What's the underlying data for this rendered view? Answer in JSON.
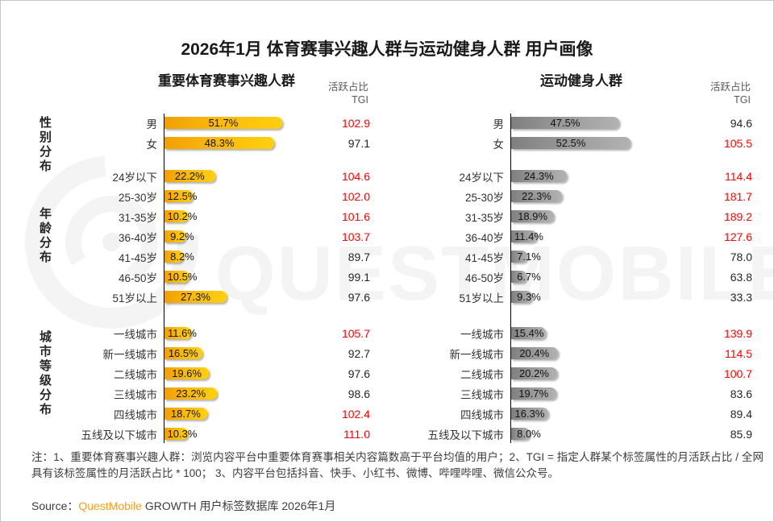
{
  "title": "2026年1月 体育赛事兴趣人群与运动健身人群 用户画像",
  "watermark": {
    "text": "QUESTMOBILE",
    "logo": "questmobile-rings-logo"
  },
  "groups": [
    {
      "label": "性别分布"
    },
    {
      "label": "年龄分布"
    },
    {
      "label": "城市等级分布"
    }
  ],
  "colors": {
    "tgi_high": "#ff0000",
    "tgi_normal": "#262626",
    "bar_gold_start": "#f0a005",
    "bar_gold_end": "#ffd00e",
    "bar_gray_start": "#7f7f7f",
    "bar_gray_end": "#b2b2b2",
    "brand_orange": "#f7a01b"
  },
  "charts": [
    {
      "subtitle": "重要体育赛事兴趣人群",
      "col_header": {
        "line1": "活跃占比",
        "line2": "TGI"
      },
      "style": "gold",
      "sections": [
        {
          "group": "性别分布",
          "rows": [
            {
              "label": "男",
              "pct": 51.7,
              "pct_label": "51.7%",
              "tgi": "102.9",
              "high": true
            },
            {
              "label": "女",
              "pct": 48.3,
              "pct_label": "48.3%",
              "tgi": "97.1",
              "high": false
            }
          ]
        },
        {
          "group": "年龄分布",
          "rows": [
            {
              "label": "24岁以下",
              "pct": 22.2,
              "pct_label": "22.2%",
              "tgi": "104.6",
              "high": true
            },
            {
              "label": "25-30岁",
              "pct": 12.5,
              "pct_label": "12.5%",
              "tgi": "102.0",
              "high": true
            },
            {
              "label": "31-35岁",
              "pct": 10.2,
              "pct_label": "10.2%",
              "tgi": "101.6",
              "high": true
            },
            {
              "label": "36-40岁",
              "pct": 9.2,
              "pct_label": "9.2%",
              "tgi": "103.7",
              "high": true
            },
            {
              "label": "41-45岁",
              "pct": 8.2,
              "pct_label": "8.2%",
              "tgi": "89.7",
              "high": false
            },
            {
              "label": "46-50岁",
              "pct": 10.5,
              "pct_label": "10.5%",
              "tgi": "99.1",
              "high": false
            },
            {
              "label": "51岁以上",
              "pct": 27.3,
              "pct_label": "27.3%",
              "tgi": "97.6",
              "high": false
            }
          ]
        },
        {
          "group": "城市等级分布",
          "rows": [
            {
              "label": "一线城市",
              "pct": 11.6,
              "pct_label": "11.6%",
              "tgi": "105.7",
              "high": true
            },
            {
              "label": "新一线城市",
              "pct": 16.5,
              "pct_label": "16.5%",
              "tgi": "92.7",
              "high": false
            },
            {
              "label": "二线城市",
              "pct": 19.6,
              "pct_label": "19.6%",
              "tgi": "97.6",
              "high": false
            },
            {
              "label": "三线城市",
              "pct": 23.2,
              "pct_label": "23.2%",
              "tgi": "98.6",
              "high": false
            },
            {
              "label": "四线城市",
              "pct": 18.7,
              "pct_label": "18.7%",
              "tgi": "102.4",
              "high": true
            },
            {
              "label": "五线及以下城市",
              "pct": 10.3,
              "pct_label": "10.3%",
              "tgi": "111.0",
              "high": true
            }
          ]
        }
      ]
    },
    {
      "subtitle": "运动健身人群",
      "col_header": {
        "line1": "活跃占比",
        "line2": "TGI"
      },
      "style": "gray",
      "sections": [
        {
          "group": "性别分布",
          "rows": [
            {
              "label": "男",
              "pct": 47.5,
              "pct_label": "47.5%",
              "tgi": "94.6",
              "high": false
            },
            {
              "label": "女",
              "pct": 52.5,
              "pct_label": "52.5%",
              "tgi": "105.5",
              "high": true
            }
          ]
        },
        {
          "group": "年龄分布",
          "rows": [
            {
              "label": "24岁以下",
              "pct": 24.3,
              "pct_label": "24.3%",
              "tgi": "114.4",
              "high": true
            },
            {
              "label": "25-30岁",
              "pct": 22.3,
              "pct_label": "22.3%",
              "tgi": "181.7",
              "high": true
            },
            {
              "label": "31-35岁",
              "pct": 18.9,
              "pct_label": "18.9%",
              "tgi": "189.2",
              "high": true
            },
            {
              "label": "36-40岁",
              "pct": 11.4,
              "pct_label": "11.4%",
              "tgi": "127.6",
              "high": true
            },
            {
              "label": "41-45岁",
              "pct": 7.1,
              "pct_label": "7.1%",
              "tgi": "78.0",
              "high": false
            },
            {
              "label": "46-50岁",
              "pct": 6.7,
              "pct_label": "6.7%",
              "tgi": "63.8",
              "high": false
            },
            {
              "label": "51岁以上",
              "pct": 9.3,
              "pct_label": "9.3%",
              "tgi": "33.3",
              "high": false
            }
          ]
        },
        {
          "group": "城市等级分布",
          "rows": [
            {
              "label": "一线城市",
              "pct": 15.4,
              "pct_label": "15.4%",
              "tgi": "139.9",
              "high": true
            },
            {
              "label": "新一线城市",
              "pct": 20.4,
              "pct_label": "20.4%",
              "tgi": "114.5",
              "high": true
            },
            {
              "label": "二线城市",
              "pct": 20.2,
              "pct_label": "20.2%",
              "tgi": "100.7",
              "high": true
            },
            {
              "label": "三线城市",
              "pct": 19.7,
              "pct_label": "19.7%",
              "tgi": "83.6",
              "high": false
            },
            {
              "label": "四线城市",
              "pct": 16.3,
              "pct_label": "16.3%",
              "tgi": "89.4",
              "high": false
            },
            {
              "label": "五线及以下城市",
              "pct": 8.0,
              "pct_label": "8.0%",
              "tgi": "85.9",
              "high": false
            }
          ]
        }
      ]
    }
  ],
  "note": {
    "text": "注：1、重要体育赛事兴趣人群：浏览内容平台中重要体育赛事相关内容篇数高于平台均值的用户；2、TGI = 指定人群某个标签属性的月活跃占比 / 全网具有该标签属性的月活跃占比 * 100；  3、内容平台包括抖音、快手、小红书、微博、哔哩哔哩、微信公众号。"
  },
  "source": {
    "prefix": "Source：",
    "brand": "QuestMobile",
    "suffix": " GROWTH 用户标签数据库  2026年1月"
  },
  "chart_data": [
    {
      "type": "bar",
      "orientation": "horizontal",
      "title": "重要体育赛事兴趣人群",
      "value_label": "活跃占比(%)",
      "group_labels": [
        "性别分布",
        "年龄分布",
        "城市等级分布"
      ],
      "categories": [
        "男",
        "女",
        "24岁以下",
        "25-30岁",
        "31-35岁",
        "36-40岁",
        "41-45岁",
        "46-50岁",
        "51岁以上",
        "一线城市",
        "新一线城市",
        "二线城市",
        "三线城市",
        "四线城市",
        "五线及以下城市"
      ],
      "series": [
        {
          "name": "活跃占比",
          "unit": "%",
          "values": [
            51.7,
            48.3,
            22.2,
            12.5,
            10.2,
            9.2,
            8.2,
            10.5,
            27.3,
            11.6,
            16.5,
            19.6,
            23.2,
            18.7,
            10.3
          ]
        },
        {
          "name": "TGI",
          "values": [
            102.9,
            97.1,
            104.6,
            102.0,
            101.6,
            103.7,
            89.7,
            99.1,
            97.6,
            105.7,
            92.7,
            97.6,
            98.6,
            102.4,
            111.0
          ]
        }
      ],
      "bar_color": "gold-gradient",
      "tgi_highlight_rule": "TGI >= 100 shown in red"
    },
    {
      "type": "bar",
      "orientation": "horizontal",
      "title": "运动健身人群",
      "value_label": "活跃占比(%)",
      "group_labels": [
        "性别分布",
        "年龄分布",
        "城市等级分布"
      ],
      "categories": [
        "男",
        "女",
        "24岁以下",
        "25-30岁",
        "31-35岁",
        "36-40岁",
        "41-45岁",
        "46-50岁",
        "51岁以上",
        "一线城市",
        "新一线城市",
        "二线城市",
        "三线城市",
        "四线城市",
        "五线及以下城市"
      ],
      "series": [
        {
          "name": "活跃占比",
          "unit": "%",
          "values": [
            47.5,
            52.5,
            24.3,
            22.3,
            18.9,
            11.4,
            7.1,
            6.7,
            9.3,
            15.4,
            20.4,
            20.2,
            19.7,
            16.3,
            8.0
          ]
        },
        {
          "name": "TGI",
          "values": [
            94.6,
            105.5,
            114.4,
            181.7,
            189.2,
            127.6,
            78.0,
            63.8,
            33.3,
            139.9,
            114.5,
            100.7,
            83.6,
            89.4,
            85.9
          ]
        }
      ],
      "bar_color": "gray-gradient",
      "tgi_highlight_rule": "TGI >= 100 shown in red"
    }
  ]
}
